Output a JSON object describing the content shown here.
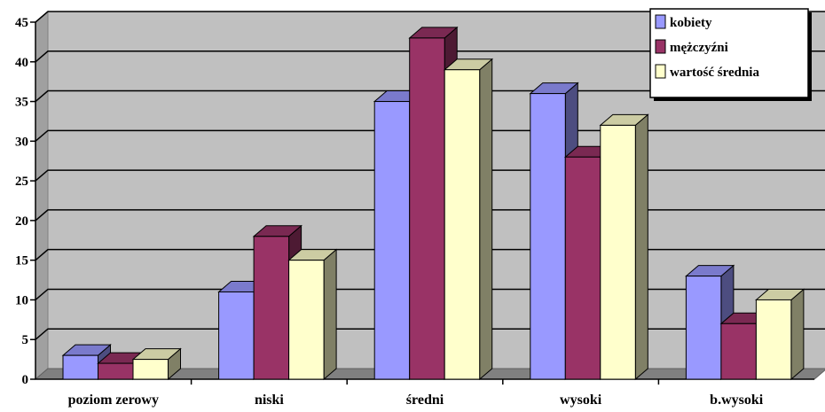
{
  "chart_data": {
    "type": "bar",
    "title": "",
    "xlabel": "",
    "ylabel": "",
    "categories": [
      "poziom zerowy",
      "niski",
      "średni",
      "wysoki",
      "b.wysoki"
    ],
    "series": [
      {
        "name": "kobiety",
        "values": [
          3,
          11,
          35,
          36,
          13
        ],
        "color": "#9999ff"
      },
      {
        "name": "mężczyźni",
        "values": [
          2,
          18,
          43,
          28,
          7
        ],
        "color": "#993366"
      },
      {
        "name": "wartość średnia",
        "values": [
          2.5,
          15,
          39,
          32,
          10
        ],
        "color": "#ffffcc"
      }
    ],
    "ylim": [
      0,
      45
    ],
    "yticks": [
      0,
      5,
      10,
      15,
      20,
      25,
      30,
      35,
      40,
      45
    ],
    "grid": true,
    "legend_position": "top-right",
    "style": "3d-clustered-bar",
    "colors": {
      "plot_background": "#c0c0c0",
      "floor": "#808080",
      "gridline": "#000000"
    }
  }
}
